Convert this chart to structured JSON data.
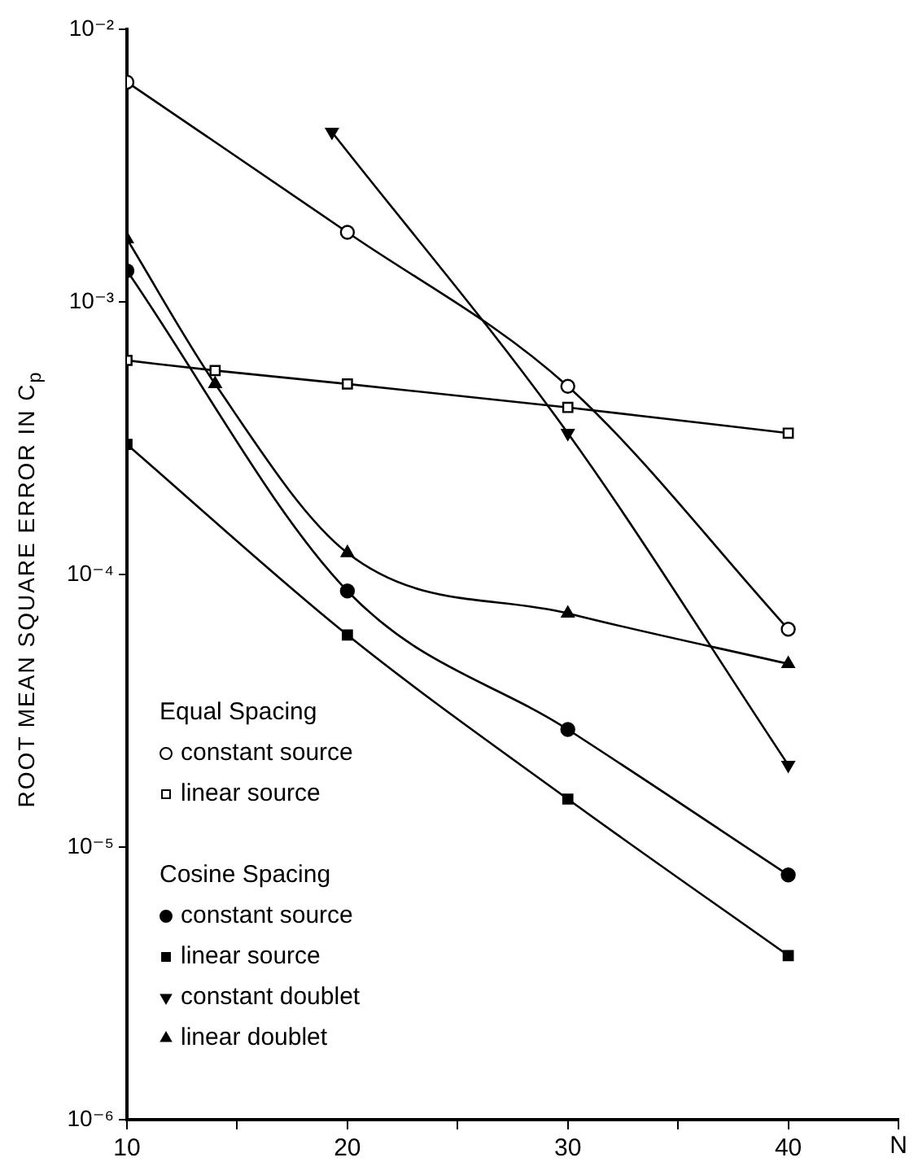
{
  "chart_data": {
    "type": "line",
    "xlabel": "N",
    "ylabel": "ROOT MEAN SQUARE ERROR IN C$_{p}$",
    "log": "y",
    "xlim": [
      10,
      45
    ],
    "xticks": [
      10,
      {
        "value": 15,
        "label": null
      },
      20,
      {
        "value": 25,
        "label": null
      },
      30,
      {
        "value": 35,
        "label": null
      },
      40,
      {
        "value": 45,
        "label": null
      }
    ],
    "ylim": [
      1e-06,
      0.01
    ],
    "yticks": [
      {
        "value": 1e-06,
        "label": "10⁻⁶"
      },
      {
        "value": 1e-05,
        "label": "10⁻⁵"
      },
      {
        "value": 0.0001,
        "label": "10⁻⁴"
      },
      {
        "value": 0.001,
        "label": "10⁻³"
      },
      {
        "value": 0.01,
        "label": "10⁻²"
      }
    ],
    "grid": false,
    "legend": "bottom left",
    "annotations": [
      "Equal Spacing",
      "Cosine Spacing"
    ],
    "series": [
      {
        "name": "constant source",
        "color": "#000000",
        "marker": "circle",
        "x": [
          10,
          20,
          30,
          40
        ],
        "values": [
          0.0064,
          0.0018,
          0.00049,
          6.3e-05
        ]
      },
      {
        "name": "linear source",
        "color": "#000000",
        "marker": "square",
        "x": [
          10,
          14,
          20,
          30,
          40
        ],
        "values": [
          0.00061,
          0.00056,
          0.0005,
          0.00041,
          0.00033
        ]
      },
      {
        "name": "constant source",
        "color": "#000000",
        "marker": "circle",
        "x": [
          10,
          20,
          30,
          40
        ],
        "values": [
          0.0013,
          8.7e-05,
          2.7e-05,
          7.9e-06
        ]
      },
      {
        "name": "linear source",
        "color": "#000000",
        "marker": "square",
        "x": [
          10,
          20,
          30,
          40
        ],
        "values": [
          0.0003,
          6e-05,
          1.5e-05,
          4e-06
        ]
      },
      {
        "name": "constant doublet",
        "color": "#000000",
        "marker": "triangle-down",
        "x": [
          19.3,
          30,
          40
        ],
        "values": [
          0.0042,
          0.00033,
          2e-05
        ]
      },
      {
        "name": "linear doublet",
        "color": "#000000",
        "marker": "triangle",
        "x": [
          10,
          14,
          20,
          30,
          40
        ],
        "values": [
          0.0017,
          0.0005,
          0.00012,
          7.2e-05,
          4.7e-05
        ]
      }
    ]
  }
}
